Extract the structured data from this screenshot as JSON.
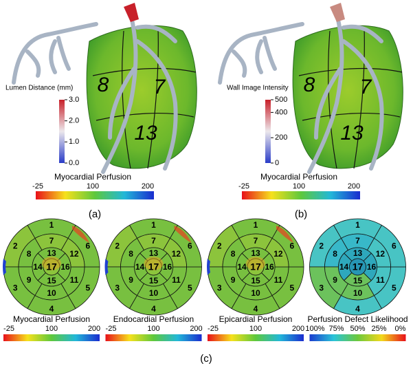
{
  "panels": [
    {
      "vertical_scale": {
        "label": "Lumen Distance (mm)",
        "ticks": [
          "3.0",
          "2.0",
          "1.0",
          "0.0"
        ]
      },
      "segment_labels": [
        "8",
        "7",
        "13"
      ],
      "horizontal_scale": {
        "label": "Myocardial Perfusion",
        "ticks": [
          "-25",
          "100",
          "200"
        ]
      },
      "caption": "(a)"
    },
    {
      "vertical_scale": {
        "label": "Wall Image Intensity",
        "ticks": [
          "500",
          "400",
          "200",
          "0"
        ]
      },
      "segment_labels": [
        "8",
        "7",
        "13"
      ],
      "horizontal_scale": {
        "label": "Myocardial Perfusion",
        "ticks": [
          "-25",
          "100",
          "200"
        ]
      },
      "caption": "(b)"
    }
  ],
  "bullseyes": [
    {
      "segments": [
        "1",
        "2",
        "3",
        "4",
        "5",
        "6",
        "7",
        "8",
        "9",
        "10",
        "11",
        "12",
        "13",
        "14",
        "15",
        "16",
        "17"
      ],
      "label": "Myocardial Perfusion",
      "ticks": [
        "-25",
        "100",
        "200"
      ]
    },
    {
      "segments": [
        "1",
        "2",
        "3",
        "4",
        "5",
        "6",
        "7",
        "8",
        "9",
        "10",
        "11",
        "12",
        "13",
        "14",
        "15",
        "16",
        "17"
      ],
      "label": "Endocardial Perfusion",
      "ticks": [
        "-25",
        "100",
        "200"
      ]
    },
    {
      "segments": [
        "1",
        "2",
        "3",
        "4",
        "5",
        "6",
        "7",
        "8",
        "9",
        "10",
        "11",
        "12",
        "13",
        "14",
        "15",
        "16",
        "17"
      ],
      "label": "Epicardial Perfusion",
      "ticks": [
        "-25",
        "100",
        "200"
      ]
    },
    {
      "segments": [
        "1",
        "2",
        "3",
        "4",
        "5",
        "6",
        "7",
        "8",
        "9",
        "10",
        "11",
        "12",
        "13",
        "14",
        "15",
        "16",
        "17"
      ],
      "label": "Perfusion Defect Likelihood",
      "ticks": [
        "100%",
        "75%",
        "50%",
        "25%",
        "0%"
      ]
    }
  ],
  "caption": "(c)"
}
